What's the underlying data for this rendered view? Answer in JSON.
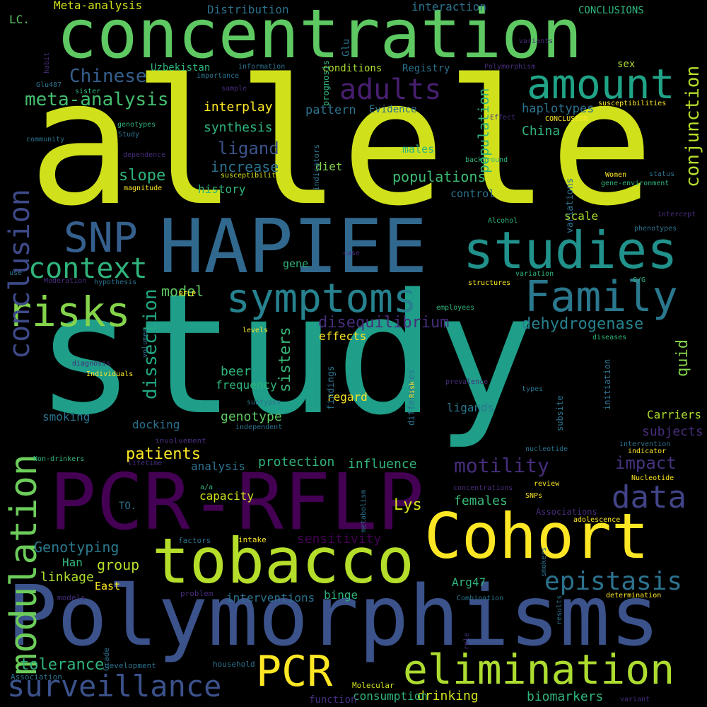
{
  "words": [
    {
      "text": "study",
      "color": "#1f9e89"
    },
    {
      "text": "allele",
      "color": "#d0e11c"
    },
    {
      "text": "Polymorphisms",
      "color": "#3b528b"
    },
    {
      "text": "concentration",
      "color": "#5ec962"
    },
    {
      "text": "HAPIEE",
      "color": "#31688e"
    },
    {
      "text": "PCR-RFLP",
      "color": "#440154"
    },
    {
      "text": "Cohort",
      "color": "#fde725"
    },
    {
      "text": "tobacco",
      "color": "#b5de2b"
    },
    {
      "text": "studies",
      "color": "#21918c"
    },
    {
      "text": "elimination",
      "color": "#addc30"
    },
    {
      "text": "symptoms",
      "color": "#26828e"
    },
    {
      "text": "Family",
      "color": "#2a788e"
    },
    {
      "text": "amount",
      "color": "#20a386"
    },
    {
      "text": "risks",
      "color": "#84d44b"
    },
    {
      "text": "modulation",
      "color": "#6ccd5a"
    },
    {
      "text": "conclusion",
      "color": "#3e4a89"
    },
    {
      "text": "SNP",
      "color": "#355f8d"
    },
    {
      "text": "PCR",
      "color": "#fde725"
    },
    {
      "text": "surveillance",
      "color": "#3b528b"
    },
    {
      "text": "data",
      "color": "#414487"
    },
    {
      "text": "context",
      "color": "#2fb47c"
    },
    {
      "text": "adults",
      "color": "#481f70"
    },
    {
      "text": "epistasis",
      "color": "#2c728e"
    },
    {
      "text": "motility",
      "color": "#472d7b"
    },
    {
      "text": "Chinese",
      "color": "#355f8d"
    },
    {
      "text": "meta-analysis",
      "color": "#44bf70"
    },
    {
      "text": "conjunction",
      "color": "#b5de2b"
    },
    {
      "text": "dissection",
      "color": "#22a884"
    },
    {
      "text": "tolerance",
      "color": "#2fb47c"
    },
    {
      "text": "impact",
      "color": "#46337e"
    },
    {
      "text": "dehydrogenase",
      "color": "#26828e"
    },
    {
      "text": "patients",
      "color": "#fde725"
    },
    {
      "text": "disequilibrium",
      "color": "#472d7b"
    },
    {
      "text": "sisters",
      "color": "#37b878"
    },
    {
      "text": "population",
      "color": "#2fb47c"
    },
    {
      "text": "ligand",
      "color": "#3b528b"
    },
    {
      "text": "protection",
      "color": "#2fb47c"
    },
    {
      "text": "influence",
      "color": "#2fb47c"
    },
    {
      "text": "Genotyping",
      "color": "#2a788e"
    },
    {
      "text": "group",
      "color": "#b5de2b"
    },
    {
      "text": "linkage",
      "color": "#addc30"
    },
    {
      "text": "Lys",
      "color": "#d8e219"
    },
    {
      "text": "slope",
      "color": "#2fb47c"
    },
    {
      "text": "populations",
      "color": "#3dbc74"
    },
    {
      "text": "model",
      "color": "#5ec962"
    },
    {
      "text": "females",
      "color": "#37b878"
    },
    {
      "text": "sensitivity",
      "color": "#440154"
    },
    {
      "text": "interplay",
      "color": "#fde725"
    },
    {
      "text": "synthesis",
      "color": "#2fb47c"
    },
    {
      "text": "increase",
      "color": "#2c728e"
    },
    {
      "text": "history",
      "color": "#2fb47c"
    },
    {
      "text": "pattern",
      "color": "#2c728e"
    },
    {
      "text": "haplotypes",
      "color": "#2c728e"
    },
    {
      "text": "China",
      "color": "#2fb47c"
    },
    {
      "text": "Han",
      "color": "#2fb47c"
    },
    {
      "text": "East",
      "color": "#fde725"
    },
    {
      "text": "Arg47",
      "color": "#2fb47c"
    },
    {
      "text": "beer",
      "color": "#2fb47c"
    },
    {
      "text": "frequency",
      "color": "#2fb47c"
    },
    {
      "text": "genotype",
      "color": "#5ec962"
    },
    {
      "text": "docking",
      "color": "#2c728e"
    },
    {
      "text": "smoking",
      "color": "#2c728e"
    },
    {
      "text": "analysis",
      "color": "#2c728e"
    },
    {
      "text": "capacity",
      "color": "#d0e11c"
    },
    {
      "text": "interventions",
      "color": "#2c728e"
    },
    {
      "text": "binge",
      "color": "#2fb47c"
    },
    {
      "text": "drinking",
      "color": "#d0e11c"
    },
    {
      "text": "consumption",
      "color": "#2fb47c"
    },
    {
      "text": "biomarkers",
      "color": "#2fb47c"
    },
    {
      "text": "quid",
      "color": "#84d44b"
    },
    {
      "text": "subjects",
      "color": "#472d7b"
    },
    {
      "text": "Carriers",
      "color": "#addc30"
    },
    {
      "text": "ligands",
      "color": "#2a788e"
    },
    {
      "text": "regard",
      "color": "#fde725"
    },
    {
      "text": "effects",
      "color": "#fde725"
    },
    {
      "text": "diet",
      "color": "#84d44b"
    },
    {
      "text": "control",
      "color": "#2c728e"
    },
    {
      "text": "scale",
      "color": "#addc30"
    },
    {
      "text": "gene",
      "color": "#2fb47c"
    },
    {
      "text": "males",
      "color": "#2fb47c"
    },
    {
      "text": "Evidence",
      "color": "#2c728e"
    },
    {
      "text": "conditions",
      "color": "#addc30"
    },
    {
      "text": "Registry",
      "color": "#2c728e"
    },
    {
      "text": "Uzbekistan",
      "color": "#2fb47c"
    },
    {
      "text": "interaction",
      "color": "#2c728e"
    },
    {
      "text": "Distribution",
      "color": "#2c728e"
    },
    {
      "text": "Meta-analysis",
      "color": "#d0e11c"
    },
    {
      "text": "CONCLUSIONS",
      "color": "#2fb47c"
    },
    {
      "text": "LC.",
      "color": "#5ec962"
    },
    {
      "text": "sex",
      "color": "#addc30"
    },
    {
      "text": "TO.",
      "color": "#2c728e"
    },
    {
      "text": "role",
      "color": "#46337e"
    },
    {
      "text": "function",
      "color": "#472d7b"
    },
    {
      "text": "Molecular",
      "color": "#d0e11c"
    },
    {
      "text": "household",
      "color": "#2c728e"
    },
    {
      "text": "Grade",
      "color": "#2c728e"
    },
    {
      "text": "Association",
      "color": "#2c728e"
    },
    {
      "text": "development",
      "color": "#2c728e"
    },
    {
      "text": "models",
      "color": "#472d7b"
    },
    {
      "text": "problem",
      "color": "#472d7b"
    },
    {
      "text": "factors",
      "color": "#2c728e"
    },
    {
      "text": "intake",
      "color": "#fde725"
    },
    {
      "text": "metabolism",
      "color": "#2c728e"
    },
    {
      "text": "a/a",
      "color": "#2fb47c"
    },
    {
      "text": "lifetime",
      "color": "#472d7b"
    },
    {
      "text": "Non-drinkers",
      "color": "#2fb47c"
    },
    {
      "text": "involvement",
      "color": "#472d7b"
    },
    {
      "text": "independent",
      "color": "#2c728e"
    },
    {
      "text": "subtypes",
      "color": "#2c728e"
    },
    {
      "text": "Individuals",
      "color": "#fde725"
    },
    {
      "text": "diagnosis",
      "color": "#472d7b"
    },
    {
      "text": "volumes",
      "color": "#2c728e"
    },
    {
      "text": "levels",
      "color": "#fde725"
    },
    {
      "text": "RFLP",
      "color": "#fde725"
    },
    {
      "text": "hypothesis",
      "color": "#2c728e"
    },
    {
      "text": "Moderation",
      "color": "#472d7b"
    },
    {
      "text": "use",
      "color": "#2c728e"
    },
    {
      "text": "Glu487",
      "color": "#2c728e"
    },
    {
      "text": "sister",
      "color": "#2fb47c"
    },
    {
      "text": "habit",
      "color": "#472d7b"
    },
    {
      "text": "genotypes",
      "color": "#2fb47c"
    },
    {
      "text": "Study",
      "color": "#2c728e"
    },
    {
      "text": "community",
      "color": "#2c728e"
    },
    {
      "text": "dependence",
      "color": "#472d7b"
    },
    {
      "text": "susceptibility",
      "color": "#d0e11c"
    },
    {
      "text": "magnitude",
      "color": "#fde725"
    },
    {
      "text": "importance",
      "color": "#2c728e"
    },
    {
      "text": "information",
      "color": "#2c728e"
    },
    {
      "text": "sample",
      "color": "#472d7b"
    },
    {
      "text": "prognosis",
      "color": "#2fb47c"
    },
    {
      "text": "Glu",
      "color": "#2c728e"
    },
    {
      "text": "indicators",
      "color": "#2c728e"
    },
    {
      "text": "Polymorphism",
      "color": "#472d7b"
    },
    {
      "text": "variants",
      "color": "#472d7b"
    },
    {
      "text": "Effect",
      "color": "#472d7b"
    },
    {
      "text": "CONCLUSION",
      "color": "#fde725"
    },
    {
      "text": "susceptibilities",
      "color": "#fde725"
    },
    {
      "text": "background",
      "color": "#2fb47c"
    },
    {
      "text": "Women",
      "color": "#fde725"
    },
    {
      "text": "status",
      "color": "#2c728e"
    },
    {
      "text": "gene-environment",
      "color": "#2fb47c"
    },
    {
      "text": "variations",
      "color": "#2c728e"
    },
    {
      "text": "Alcohol",
      "color": "#2fb47c"
    },
    {
      "text": "intercept",
      "color": "#472d7b"
    },
    {
      "text": "phenotypes",
      "color": "#2c728e"
    },
    {
      "text": "case",
      "color": "#472d7b"
    },
    {
      "text": "variation",
      "color": "#2fb47c"
    },
    {
      "text": "structures",
      "color": "#fde725"
    },
    {
      "text": "G/G",
      "color": "#2fb47c"
    },
    {
      "text": "employees",
      "color": "#2fb47c"
    },
    {
      "text": "diseases",
      "color": "#2fb47c"
    },
    {
      "text": "findings",
      "color": "#2c728e"
    },
    {
      "text": "differences",
      "color": "#2c728e"
    },
    {
      "text": "Risk",
      "color": "#fde725"
    },
    {
      "text": "prevalence",
      "color": "#472d7b"
    },
    {
      "text": "types",
      "color": "#2c728e"
    },
    {
      "text": "initiation",
      "color": "#2c728e"
    },
    {
      "text": "subsite",
      "color": "#2c728e"
    },
    {
      "text": "intervention",
      "color": "#2c728e"
    },
    {
      "text": "indicator",
      "color": "#fde725"
    },
    {
      "text": "nucleotide",
      "color": "#2c728e"
    },
    {
      "text": "Nucleotide",
      "color": "#fde725"
    },
    {
      "text": "review",
      "color": "#fde725"
    },
    {
      "text": "concentrations",
      "color": "#472d7b"
    },
    {
      "text": "SNPs",
      "color": "#fde725"
    },
    {
      "text": "Associations",
      "color": "#472d7b"
    },
    {
      "text": "adolescence",
      "color": "#fde725"
    },
    {
      "text": "smokers",
      "color": "#2c728e"
    },
    {
      "text": "results",
      "color": "#2c728e"
    },
    {
      "text": "Combination",
      "color": "#2c728e"
    },
    {
      "text": "determination",
      "color": "#fde725"
    },
    {
      "text": "variant",
      "color": "#472d7b"
    }
  ]
}
